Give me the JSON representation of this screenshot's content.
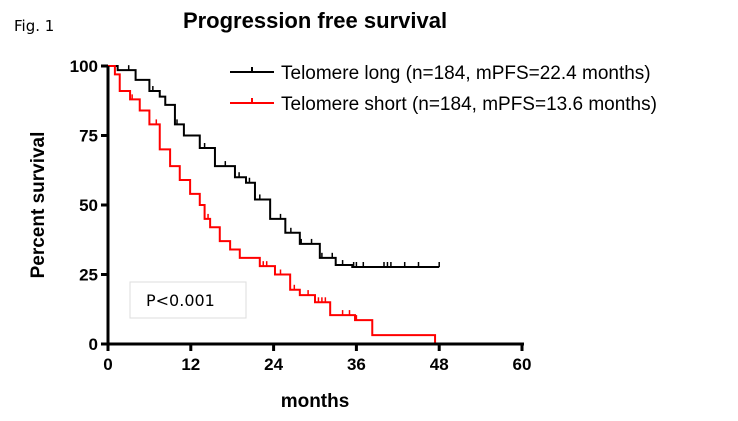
{
  "figure_label": "Fig. 1",
  "chart_data": {
    "type": "line",
    "subtype": "kaplan-meier step",
    "title": "Progression free survival",
    "xlabel": "months",
    "ylabel": "Percent survival",
    "xlim": [
      0,
      60
    ],
    "ylim": [
      0,
      100
    ],
    "xticks": [
      0,
      12,
      24,
      36,
      48,
      60
    ],
    "yticks": [
      0,
      25,
      50,
      75,
      100
    ],
    "grid": false,
    "legend_position": "top-right",
    "annotation": "P<0.001",
    "series": [
      {
        "name": "Telomere long (n=184, mPFS=22.4 months)",
        "color": "#000000",
        "points": [
          [
            0,
            100
          ],
          [
            1.4,
            98.5
          ],
          [
            4,
            95
          ],
          [
            6,
            91
          ],
          [
            7.5,
            89
          ],
          [
            8.3,
            86
          ],
          [
            9.7,
            79
          ],
          [
            11,
            75
          ],
          [
            13.3,
            70.5
          ],
          [
            15.5,
            64
          ],
          [
            18.4,
            60
          ],
          [
            20,
            58
          ],
          [
            21.3,
            52
          ],
          [
            23.5,
            45
          ],
          [
            25.7,
            40
          ],
          [
            27.8,
            36
          ],
          [
            30.7,
            31
          ],
          [
            33,
            28.4
          ],
          [
            35.4,
            27.7
          ],
          [
            48,
            27.7
          ]
        ],
        "censored": [
          3,
          6.5,
          10,
          14,
          17,
          19,
          20.5,
          22,
          25,
          26.5,
          28,
          29.5,
          31,
          32.5,
          34,
          35.6,
          36,
          37,
          40,
          40.5,
          41,
          43,
          45,
          48
        ]
      },
      {
        "name": "Telomere short (n=184, mPFS=13.6 months)",
        "color": "#ff0000",
        "points": [
          [
            0,
            100
          ],
          [
            1,
            97
          ],
          [
            1.7,
            91
          ],
          [
            3.2,
            88
          ],
          [
            4.6,
            84
          ],
          [
            6,
            79
          ],
          [
            7.5,
            70
          ],
          [
            9,
            64
          ],
          [
            10.4,
            59
          ],
          [
            11.9,
            54
          ],
          [
            13.3,
            50
          ],
          [
            14,
            45
          ],
          [
            14.8,
            42
          ],
          [
            16.2,
            37
          ],
          [
            17.7,
            34
          ],
          [
            19.1,
            31
          ],
          [
            22,
            28
          ],
          [
            24.2,
            25
          ],
          [
            26.4,
            19.5
          ],
          [
            27.8,
            17.6
          ],
          [
            30,
            15
          ],
          [
            32.2,
            10.4
          ],
          [
            35.8,
            8.6
          ],
          [
            38.3,
            3.2
          ],
          [
            47.4,
            3.2
          ],
          [
            47.4,
            0
          ]
        ],
        "censored": [
          3.5,
          7,
          14.5,
          22.5,
          23,
          25,
          27,
          29,
          30.5,
          31,
          31.5,
          34,
          35,
          36
        ]
      }
    ]
  }
}
